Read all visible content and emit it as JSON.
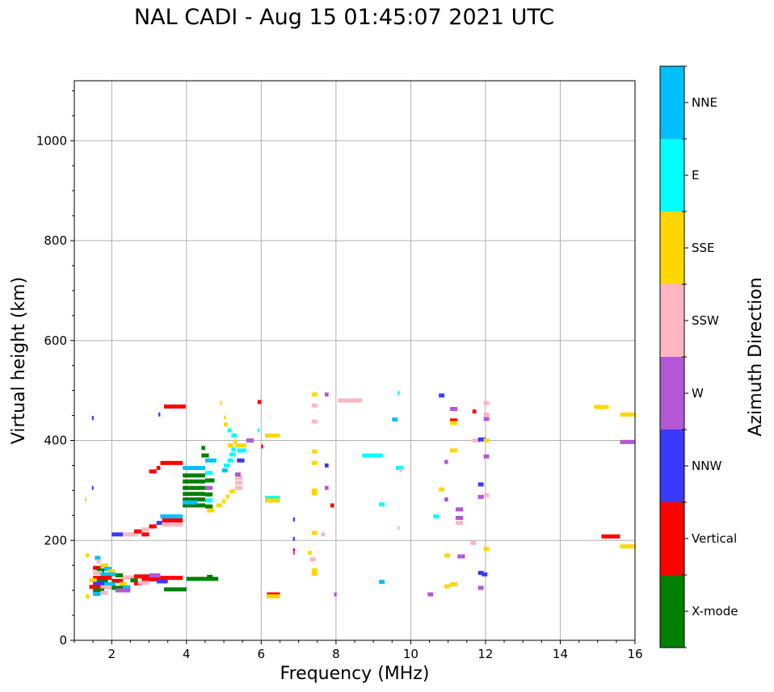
{
  "chart_data": {
    "type": "scatter",
    "title": "NAL CADI - Aug 15 01:45:07 2021 UTC",
    "xlabel": "Frequency (MHz)",
    "ylabel": "Virtual height (km)",
    "xlim": [
      1,
      16
    ],
    "ylim": [
      0,
      1120
    ],
    "xticks": [
      2,
      4,
      6,
      8,
      10,
      12,
      14,
      16
    ],
    "yticks": [
      0,
      200,
      400,
      600,
      800,
      1000
    ],
    "grid": true,
    "colorbar": {
      "label": "Azimuth Direction",
      "categories": [
        "X-mode",
        "Vertical",
        "NNW",
        "W",
        "SSW",
        "SSE",
        "E",
        "NNE"
      ],
      "colors": [
        "#008000",
        "#ff0000",
        "#3a3aff",
        "#b357d6",
        "#ffb6c1",
        "#ffd700",
        "#00ffff",
        "#00bfff"
      ]
    },
    "echoes": [
      {
        "x0": 1.47,
        "x1": 1.52,
        "y": 445,
        "dir": "NNW"
      },
      {
        "x0": 1.47,
        "x1": 1.5,
        "y": 305,
        "dir": "NNW"
      },
      {
        "x0": 1.28,
        "x1": 1.32,
        "y": 282,
        "dir": "SSE"
      },
      {
        "x0": 1.3,
        "x1": 1.4,
        "y": 170,
        "dir": "SSE"
      },
      {
        "x0": 1.55,
        "x1": 1.7,
        "y": 165,
        "dir": "NNE"
      },
      {
        "x0": 1.6,
        "x1": 1.7,
        "y": 158,
        "dir": "SSW"
      },
      {
        "x0": 1.7,
        "x1": 1.9,
        "y": 150,
        "dir": "SSE"
      },
      {
        "x0": 1.5,
        "x1": 1.7,
        "y": 145,
        "dir": "Vertical"
      },
      {
        "x0": 1.8,
        "x1": 2.0,
        "y": 143,
        "dir": "NNE"
      },
      {
        "x0": 1.6,
        "x1": 1.8,
        "y": 140,
        "dir": "X-mode"
      },
      {
        "x0": 1.9,
        "x1": 2.1,
        "y": 138,
        "dir": "SSE"
      },
      {
        "x0": 1.5,
        "x1": 1.75,
        "y": 135,
        "dir": "SSW"
      },
      {
        "x0": 1.7,
        "x1": 2.1,
        "y": 132,
        "dir": "NNE"
      },
      {
        "x0": 2.1,
        "x1": 2.3,
        "y": 130,
        "dir": "X-mode"
      },
      {
        "x0": 1.5,
        "x1": 2.0,
        "y": 125,
        "dir": "Vertical"
      },
      {
        "x0": 2.3,
        "x1": 2.6,
        "y": 126,
        "dir": "SSW"
      },
      {
        "x0": 1.4,
        "x1": 1.6,
        "y": 120,
        "dir": "SSE"
      },
      {
        "x0": 1.6,
        "x1": 1.9,
        "y": 118,
        "dir": "X-mode"
      },
      {
        "x0": 2.0,
        "x1": 2.3,
        "y": 119,
        "dir": "Vertical"
      },
      {
        "x0": 2.5,
        "x1": 2.7,
        "y": 120,
        "dir": "X-mode"
      },
      {
        "x0": 1.5,
        "x1": 1.8,
        "y": 113,
        "dir": "NNW"
      },
      {
        "x0": 1.8,
        "x1": 2.1,
        "y": 112,
        "dir": "NNE"
      },
      {
        "x0": 2.2,
        "x1": 2.4,
        "y": 113,
        "dir": "SSE"
      },
      {
        "x0": 2.6,
        "x1": 2.8,
        "y": 114,
        "dir": "Vertical"
      },
      {
        "x0": 1.4,
        "x1": 1.7,
        "y": 107,
        "dir": "Vertical"
      },
      {
        "x0": 1.7,
        "x1": 2.0,
        "y": 106,
        "dir": "SSW"
      },
      {
        "x0": 2.0,
        "x1": 2.3,
        "y": 105,
        "dir": "X-mode"
      },
      {
        "x0": 2.3,
        "x1": 2.5,
        "y": 106,
        "dir": "NNE"
      },
      {
        "x0": 1.5,
        "x1": 1.8,
        "y": 100,
        "dir": "X-mode"
      },
      {
        "x0": 2.1,
        "x1": 2.5,
        "y": 100,
        "dir": "W"
      },
      {
        "x0": 1.5,
        "x1": 1.7,
        "y": 93,
        "dir": "NNE"
      },
      {
        "x0": 1.3,
        "x1": 1.4,
        "y": 88,
        "dir": "SSE"
      },
      {
        "x0": 1.7,
        "x1": 1.9,
        "y": 95,
        "dir": "SSW"
      },
      {
        "x0": 2.6,
        "x1": 3.0,
        "y": 128,
        "dir": "Vertical"
      },
      {
        "x0": 2.8,
        "x1": 3.3,
        "y": 122,
        "dir": "Vertical"
      },
      {
        "x0": 2.7,
        "x1": 3.0,
        "y": 115,
        "dir": "SSW"
      },
      {
        "x0": 3.3,
        "x1": 3.9,
        "y": 125,
        "dir": "Vertical"
      },
      {
        "x0": 3.2,
        "x1": 3.5,
        "y": 118,
        "dir": "NNW"
      },
      {
        "x0": 3.0,
        "x1": 3.3,
        "y": 130,
        "dir": "W"
      },
      {
        "x0": 3.4,
        "x1": 4.0,
        "y": 102,
        "dir": "X-mode"
      },
      {
        "x0": 4.0,
        "x1": 4.5,
        "y": 123,
        "dir": "X-mode"
      },
      {
        "x0": 4.5,
        "x1": 4.85,
        "y": 123,
        "dir": "X-mode"
      },
      {
        "x0": 4.55,
        "x1": 4.7,
        "y": 127,
        "dir": "X-mode"
      },
      {
        "x0": 2.0,
        "x1": 2.3,
        "y": 212,
        "dir": "NNW"
      },
      {
        "x0": 2.3,
        "x1": 2.7,
        "y": 212,
        "dir": "SSW"
      },
      {
        "x0": 2.6,
        "x1": 2.8,
        "y": 218,
        "dir": "Vertical"
      },
      {
        "x0": 2.8,
        "x1": 3.0,
        "y": 222,
        "dir": "SSW"
      },
      {
        "x0": 2.8,
        "x1": 3.0,
        "y": 212,
        "dir": "Vertical"
      },
      {
        "x0": 3.0,
        "x1": 3.2,
        "y": 228,
        "dir": "Vertical"
      },
      {
        "x0": 3.2,
        "x1": 3.35,
        "y": 235,
        "dir": "NNW"
      },
      {
        "x0": 3.3,
        "x1": 3.9,
        "y": 248,
        "dir": "NNE"
      },
      {
        "x0": 3.35,
        "x1": 3.9,
        "y": 240,
        "dir": "Vertical"
      },
      {
        "x0": 3.35,
        "x1": 3.9,
        "y": 232,
        "dir": "SSW"
      },
      {
        "x0": 3.0,
        "x1": 3.2,
        "y": 338,
        "dir": "Vertical"
      },
      {
        "x0": 3.2,
        "x1": 3.3,
        "y": 345,
        "dir": "Vertical"
      },
      {
        "x0": 3.3,
        "x1": 3.9,
        "y": 355,
        "dir": "Vertical"
      },
      {
        "x0": 3.4,
        "x1": 3.98,
        "y": 468,
        "dir": "Vertical"
      },
      {
        "x0": 3.25,
        "x1": 3.3,
        "y": 452,
        "dir": "NNW"
      },
      {
        "x0": 3.9,
        "x1": 4.5,
        "y": 345,
        "dir": "NNE"
      },
      {
        "x0": 3.9,
        "x1": 4.5,
        "y": 330,
        "dir": "X-mode"
      },
      {
        "x0": 3.9,
        "x1": 4.5,
        "y": 318,
        "dir": "X-mode"
      },
      {
        "x0": 3.9,
        "x1": 4.5,
        "y": 305,
        "dir": "X-mode"
      },
      {
        "x0": 3.9,
        "x1": 4.5,
        "y": 293,
        "dir": "X-mode"
      },
      {
        "x0": 3.9,
        "x1": 4.5,
        "y": 282,
        "dir": "X-mode"
      },
      {
        "x0": 3.9,
        "x1": 4.5,
        "y": 270,
        "dir": "X-mode"
      },
      {
        "x0": 3.9,
        "x1": 4.3,
        "y": 276,
        "dir": "NNE"
      },
      {
        "x0": 4.4,
        "x1": 4.6,
        "y": 370,
        "dir": "X-mode"
      },
      {
        "x0": 4.4,
        "x1": 4.5,
        "y": 385,
        "dir": "X-mode"
      },
      {
        "x0": 4.5,
        "x1": 4.8,
        "y": 360,
        "dir": "NNE"
      },
      {
        "x0": 4.5,
        "x1": 4.7,
        "y": 335,
        "dir": "E"
      },
      {
        "x0": 4.5,
        "x1": 4.75,
        "y": 320,
        "dir": "X-mode"
      },
      {
        "x0": 4.5,
        "x1": 4.7,
        "y": 305,
        "dir": "W"
      },
      {
        "x0": 4.5,
        "x1": 4.7,
        "y": 292,
        "dir": "X-mode"
      },
      {
        "x0": 4.5,
        "x1": 4.7,
        "y": 280,
        "dir": "E"
      },
      {
        "x0": 4.5,
        "x1": 4.7,
        "y": 268,
        "dir": "X-mode"
      },
      {
        "x0": 4.55,
        "x1": 4.75,
        "y": 260,
        "dir": "SSE"
      },
      {
        "x0": 4.8,
        "x1": 4.95,
        "y": 270,
        "dir": "SSE"
      },
      {
        "x0": 4.95,
        "x1": 5.05,
        "y": 278,
        "dir": "SSE"
      },
      {
        "x0": 5.05,
        "x1": 5.15,
        "y": 288,
        "dir": "SSE"
      },
      {
        "x0": 5.15,
        "x1": 5.3,
        "y": 298,
        "dir": "SSE"
      },
      {
        "x0": 5.3,
        "x1": 5.5,
        "y": 305,
        "dir": "SSW"
      },
      {
        "x0": 5.3,
        "x1": 5.5,
        "y": 315,
        "dir": "SSW"
      },
      {
        "x0": 5.3,
        "x1": 5.5,
        "y": 325,
        "dir": "SSW"
      },
      {
        "x0": 5.3,
        "x1": 5.45,
        "y": 332,
        "dir": "W"
      },
      {
        "x0": 4.95,
        "x1": 5.1,
        "y": 340,
        "dir": "NNE"
      },
      {
        "x0": 5.0,
        "x1": 5.15,
        "y": 350,
        "dir": "E"
      },
      {
        "x0": 5.1,
        "x1": 5.25,
        "y": 360,
        "dir": "E"
      },
      {
        "x0": 5.15,
        "x1": 5.3,
        "y": 372,
        "dir": "E"
      },
      {
        "x0": 5.2,
        "x1": 5.3,
        "y": 382,
        "dir": "E"
      },
      {
        "x0": 5.1,
        "x1": 5.25,
        "y": 390,
        "dir": "SSE"
      },
      {
        "x0": 5.25,
        "x1": 5.35,
        "y": 398,
        "dir": "SSE"
      },
      {
        "x0": 5.2,
        "x1": 5.35,
        "y": 410,
        "dir": "E"
      },
      {
        "x0": 5.1,
        "x1": 5.2,
        "y": 420,
        "dir": "E"
      },
      {
        "x0": 5.0,
        "x1": 5.1,
        "y": 432,
        "dir": "SSE"
      },
      {
        "x0": 5.0,
        "x1": 5.05,
        "y": 446,
        "dir": "SSE"
      },
      {
        "x0": 4.9,
        "x1": 4.95,
        "y": 475,
        "dir": "SSE"
      },
      {
        "x0": 5.3,
        "x1": 5.6,
        "y": 390,
        "dir": "SSE"
      },
      {
        "x0": 5.35,
        "x1": 5.6,
        "y": 380,
        "dir": "E"
      },
      {
        "x0": 5.35,
        "x1": 5.55,
        "y": 360,
        "dir": "NNW"
      },
      {
        "x0": 5.6,
        "x1": 5.8,
        "y": 400,
        "dir": "W"
      },
      {
        "x0": 5.9,
        "x1": 5.95,
        "y": 420,
        "dir": "E"
      },
      {
        "x0": 6.1,
        "x1": 6.5,
        "y": 410,
        "dir": "SSE"
      },
      {
        "x0": 6.0,
        "x1": 6.05,
        "y": 388,
        "dir": "Vertical"
      },
      {
        "x0": 6.1,
        "x1": 6.5,
        "y": 285,
        "dir": "E"
      },
      {
        "x0": 6.1,
        "x1": 6.5,
        "y": 280,
        "dir": "SSE"
      },
      {
        "x0": 5.9,
        "x1": 6.0,
        "y": 477,
        "dir": "Vertical"
      },
      {
        "x0": 6.15,
        "x1": 6.5,
        "y": 92,
        "dir": "Vertical"
      },
      {
        "x0": 6.15,
        "x1": 6.5,
        "y": 88,
        "dir": "SSE"
      },
      {
        "x0": 6.85,
        "x1": 6.9,
        "y": 242,
        "dir": "NNW"
      },
      {
        "x0": 6.85,
        "x1": 6.9,
        "y": 203,
        "dir": "NNW"
      },
      {
        "x0": 6.85,
        "x1": 6.9,
        "y": 180,
        "dir": "Vertical"
      },
      {
        "x0": 6.85,
        "x1": 6.9,
        "y": 175,
        "dir": "W"
      },
      {
        "x0": 7.25,
        "x1": 7.35,
        "y": 175,
        "dir": "SSE"
      },
      {
        "x0": 7.3,
        "x1": 7.45,
        "y": 162,
        "dir": "SSW"
      },
      {
        "x0": 7.35,
        "x1": 7.5,
        "y": 140,
        "dir": "SSE"
      },
      {
        "x0": 7.35,
        "x1": 7.5,
        "y": 133,
        "dir": "SSE"
      },
      {
        "x0": 7.35,
        "x1": 7.5,
        "y": 215,
        "dir": "SSE"
      },
      {
        "x0": 7.6,
        "x1": 7.7,
        "y": 212,
        "dir": "SSW"
      },
      {
        "x0": 7.35,
        "x1": 7.5,
        "y": 300,
        "dir": "SSE"
      },
      {
        "x0": 7.35,
        "x1": 7.5,
        "y": 294,
        "dir": "SSE"
      },
      {
        "x0": 7.35,
        "x1": 7.5,
        "y": 355,
        "dir": "SSE"
      },
      {
        "x0": 7.35,
        "x1": 7.5,
        "y": 378,
        "dir": "SSE"
      },
      {
        "x0": 7.35,
        "x1": 7.5,
        "y": 438,
        "dir": "SSW"
      },
      {
        "x0": 7.35,
        "x1": 7.5,
        "y": 470,
        "dir": "SSW"
      },
      {
        "x0": 7.35,
        "x1": 7.5,
        "y": 492,
        "dir": "SSE"
      },
      {
        "x0": 7.7,
        "x1": 7.8,
        "y": 492,
        "dir": "W"
      },
      {
        "x0": 7.7,
        "x1": 7.8,
        "y": 350,
        "dir": "NNW"
      },
      {
        "x0": 7.7,
        "x1": 7.8,
        "y": 305,
        "dir": "W"
      },
      {
        "x0": 7.85,
        "x1": 7.95,
        "y": 270,
        "dir": "Vertical"
      },
      {
        "x0": 7.95,
        "x1": 8.02,
        "y": 92,
        "dir": "W"
      },
      {
        "x0": 8.05,
        "x1": 8.7,
        "y": 480,
        "dir": "SSW"
      },
      {
        "x0": 8.7,
        "x1": 9.25,
        "y": 370,
        "dir": "E"
      },
      {
        "x0": 9.15,
        "x1": 9.3,
        "y": 272,
        "dir": "E"
      },
      {
        "x0": 9.15,
        "x1": 9.3,
        "y": 117,
        "dir": "NNE"
      },
      {
        "x0": 9.5,
        "x1": 9.65,
        "y": 442,
        "dir": "NNE"
      },
      {
        "x0": 9.65,
        "x1": 9.7,
        "y": 495,
        "dir": "E"
      },
      {
        "x0": 9.6,
        "x1": 9.8,
        "y": 345,
        "dir": "E"
      },
      {
        "x0": 9.7,
        "x1": 9.75,
        "y": 340,
        "dir": "SSW"
      },
      {
        "x0": 9.65,
        "x1": 9.7,
        "y": 225,
        "dir": "SSW"
      },
      {
        "x0": 10.45,
        "x1": 10.6,
        "y": 92,
        "dir": "W"
      },
      {
        "x0": 10.6,
        "x1": 10.75,
        "y": 248,
        "dir": "E"
      },
      {
        "x0": 10.75,
        "x1": 10.9,
        "y": 490,
        "dir": "NNW"
      },
      {
        "x0": 10.75,
        "x1": 10.9,
        "y": 302,
        "dir": "SSE"
      },
      {
        "x0": 10.9,
        "x1": 11.0,
        "y": 282,
        "dir": "W"
      },
      {
        "x0": 10.9,
        "x1": 11.0,
        "y": 357,
        "dir": "W"
      },
      {
        "x0": 10.9,
        "x1": 11.05,
        "y": 170,
        "dir": "SSE"
      },
      {
        "x0": 10.9,
        "x1": 11.05,
        "y": 108,
        "dir": "SSE"
      },
      {
        "x0": 11.05,
        "x1": 11.25,
        "y": 112,
        "dir": "SSE"
      },
      {
        "x0": 11.05,
        "x1": 11.25,
        "y": 380,
        "dir": "SSE"
      },
      {
        "x0": 11.05,
        "x1": 11.25,
        "y": 440,
        "dir": "Vertical"
      },
      {
        "x0": 11.05,
        "x1": 11.25,
        "y": 435,
        "dir": "SSE"
      },
      {
        "x0": 11.05,
        "x1": 11.25,
        "y": 463,
        "dir": "W"
      },
      {
        "x0": 11.2,
        "x1": 11.4,
        "y": 262,
        "dir": "W"
      },
      {
        "x0": 11.2,
        "x1": 11.4,
        "y": 245,
        "dir": "W"
      },
      {
        "x0": 11.2,
        "x1": 11.4,
        "y": 235,
        "dir": "SSW"
      },
      {
        "x0": 11.25,
        "x1": 11.45,
        "y": 168,
        "dir": "W"
      },
      {
        "x0": 11.65,
        "x1": 11.75,
        "y": 458,
        "dir": "Vertical"
      },
      {
        "x0": 11.65,
        "x1": 11.85,
        "y": 400,
        "dir": "SSW"
      },
      {
        "x0": 11.8,
        "x1": 12.0,
        "y": 402,
        "dir": "NNW"
      },
      {
        "x0": 11.8,
        "x1": 11.95,
        "y": 312,
        "dir": "NNW"
      },
      {
        "x0": 11.8,
        "x1": 11.95,
        "y": 287,
        "dir": "W"
      },
      {
        "x0": 11.6,
        "x1": 11.75,
        "y": 195,
        "dir": "SSW"
      },
      {
        "x0": 11.8,
        "x1": 11.95,
        "y": 135,
        "dir": "NNW"
      },
      {
        "x0": 11.9,
        "x1": 12.05,
        "y": 132,
        "dir": "NNW"
      },
      {
        "x0": 11.8,
        "x1": 11.95,
        "y": 105,
        "dir": "W"
      },
      {
        "x0": 11.95,
        "x1": 12.1,
        "y": 475,
        "dir": "SSW"
      },
      {
        "x0": 11.95,
        "x1": 12.1,
        "y": 452,
        "dir": "SSW"
      },
      {
        "x0": 11.95,
        "x1": 12.1,
        "y": 443,
        "dir": "W"
      },
      {
        "x0": 11.95,
        "x1": 12.1,
        "y": 400,
        "dir": "SSE"
      },
      {
        "x0": 11.95,
        "x1": 12.1,
        "y": 368,
        "dir": "W"
      },
      {
        "x0": 11.95,
        "x1": 12.1,
        "y": 290,
        "dir": "SSW"
      },
      {
        "x0": 11.95,
        "x1": 12.1,
        "y": 183,
        "dir": "SSE"
      },
      {
        "x0": 14.9,
        "x1": 15.3,
        "y": 467,
        "dir": "SSE"
      },
      {
        "x0": 15.1,
        "x1": 15.6,
        "y": 208,
        "dir": "Vertical"
      },
      {
        "x0": 15.6,
        "x1": 16.0,
        "y": 452,
        "dir": "SSE"
      },
      {
        "x0": 15.6,
        "x1": 16.0,
        "y": 397,
        "dir": "W"
      },
      {
        "x0": 15.6,
        "x1": 16.0,
        "y": 188,
        "dir": "SSE"
      }
    ]
  }
}
